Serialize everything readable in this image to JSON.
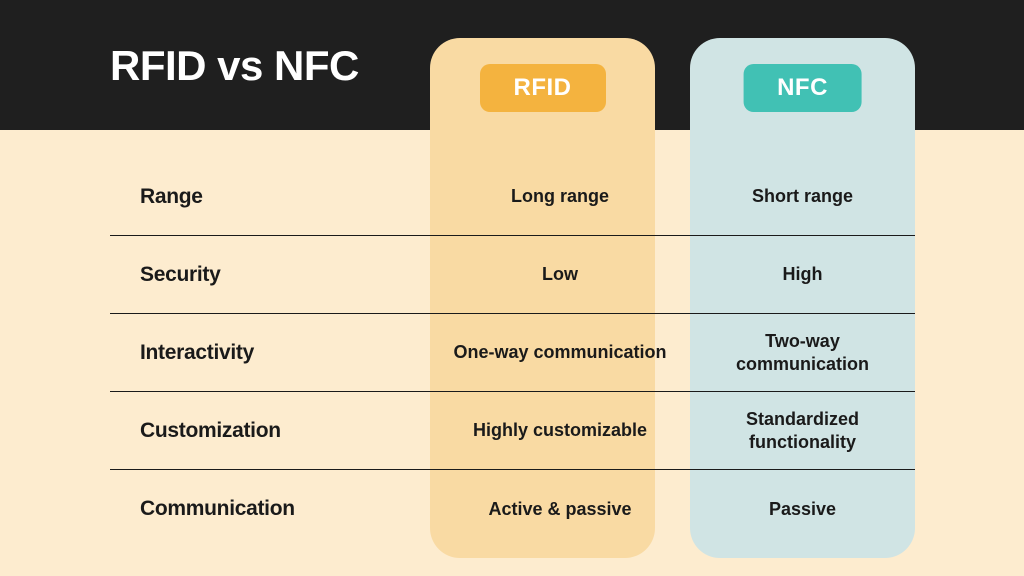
{
  "title": "RFID vs NFC",
  "colors": {
    "header_bg": "#1f1f1f",
    "body_bg": "#fdeccf",
    "rfid_col_bg": "#f9daa3",
    "nfc_col_bg": "#d0e4e4",
    "rfid_badge_bg": "#f4b33f",
    "rfid_badge_text": "#ffffff",
    "nfc_badge_bg": "#41c1b4",
    "nfc_badge_text": "#ffffff",
    "text": "#1a1a1a",
    "divider": "#1a1a1a"
  },
  "columns": {
    "rfid_label": "RFID",
    "nfc_label": "NFC"
  },
  "rows": [
    {
      "label": "Range",
      "rfid": "Long range",
      "nfc": "Short range"
    },
    {
      "label": "Security",
      "rfid": "Low",
      "nfc": "High"
    },
    {
      "label": "Interactivity",
      "rfid": "One-way communication",
      "nfc": "Two-way communication"
    },
    {
      "label": "Customization",
      "rfid": "Highly customizable",
      "nfc": "Standardized functionality"
    },
    {
      "label": "Communication",
      "rfid": "Active & passive",
      "nfc": "Passive"
    }
  ]
}
